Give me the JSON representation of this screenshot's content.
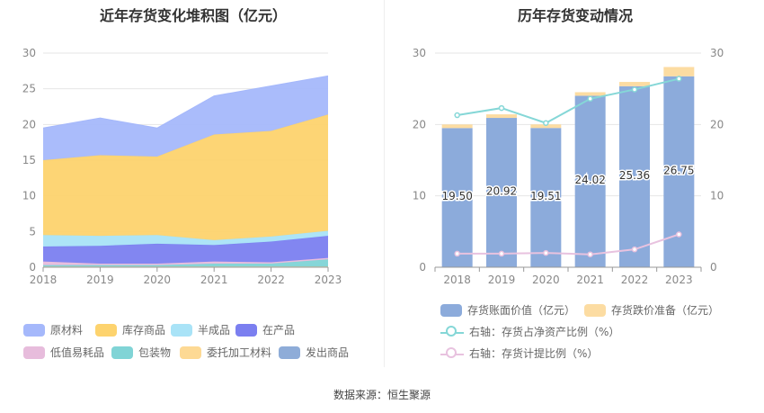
{
  "source_text": "数据来源：恒生聚源",
  "chart_data": [
    {
      "type": "area",
      "title": "近年存货变化堆积图（亿元）",
      "x": [
        "2018",
        "2019",
        "2020",
        "2021",
        "2022",
        "2023"
      ],
      "ylim": [
        0,
        30
      ],
      "yticks": [
        0,
        5,
        10,
        15,
        20,
        25,
        30
      ],
      "grid": true,
      "legend_position": "bottom",
      "series": [
        {
          "name": "发出商品",
          "color": "#8eacd8",
          "values": [
            0.1,
            0.1,
            0.1,
            0.1,
            0.1,
            0.1
          ]
        },
        {
          "name": "委托加工材料",
          "color": "#fdd994",
          "values": [
            0.0,
            0.0,
            0.0,
            0.0,
            0.0,
            0.0
          ]
        },
        {
          "name": "包装物",
          "color": "#80d4d6",
          "values": [
            0.2,
            0.2,
            0.2,
            0.4,
            0.4,
            1.0
          ]
        },
        {
          "name": "低值易耗品",
          "color": "#e7bcdc",
          "values": [
            0.5,
            0.2,
            0.2,
            0.3,
            0.2,
            0.2
          ]
        },
        {
          "name": "在产品",
          "color": "#7b7ff0",
          "values": [
            2.1,
            2.5,
            2.8,
            2.3,
            2.9,
            3.1
          ]
        },
        {
          "name": "半成品",
          "color": "#a9e3f7",
          "values": [
            1.6,
            1.4,
            1.2,
            0.7,
            0.7,
            0.7
          ]
        },
        {
          "name": "库存商品",
          "color": "#fdd36e",
          "values": [
            10.5,
            11.3,
            11.0,
            14.8,
            14.8,
            16.3
          ]
        },
        {
          "name": "原材料",
          "color": "#a5b8fb",
          "values": [
            4.5,
            5.2,
            4.0,
            5.4,
            6.3,
            5.4
          ]
        }
      ]
    },
    {
      "type": "bar",
      "title": "历年存货变动情况",
      "categories": [
        "2018",
        "2019",
        "2020",
        "2021",
        "2022",
        "2023"
      ],
      "ylim": [
        0,
        30
      ],
      "yticks": [
        0,
        10,
        20,
        30
      ],
      "y2ticks": [
        0,
        10,
        20,
        30
      ],
      "legend_position": "bottom",
      "series": [
        {
          "name": "存货账面价值（亿元）",
          "kind": "bar",
          "color": "#8cabdb",
          "values": [
            19.5,
            20.92,
            19.51,
            24.02,
            25.36,
            26.75
          ],
          "labels": [
            "19.50",
            "20.92",
            "19.51",
            "24.02",
            "25.36",
            "26.75"
          ]
        },
        {
          "name": "存货跌价准备（亿元）",
          "kind": "bar",
          "color": "#fcdca2",
          "values": [
            0.5,
            0.5,
            0.5,
            0.5,
            0.6,
            1.3
          ]
        },
        {
          "name": "右轴：存货占净资产比例（%）",
          "kind": "line",
          "axis": "right",
          "color": "#85d7d7",
          "values": [
            21.3,
            22.3,
            20.2,
            23.6,
            24.9,
            26.4
          ]
        },
        {
          "name": "右轴：存货计提比例（%）",
          "kind": "line",
          "axis": "right",
          "color": "#e8c2df",
          "values": [
            1.9,
            1.9,
            2.0,
            1.8,
            2.5,
            4.6
          ]
        }
      ]
    }
  ]
}
